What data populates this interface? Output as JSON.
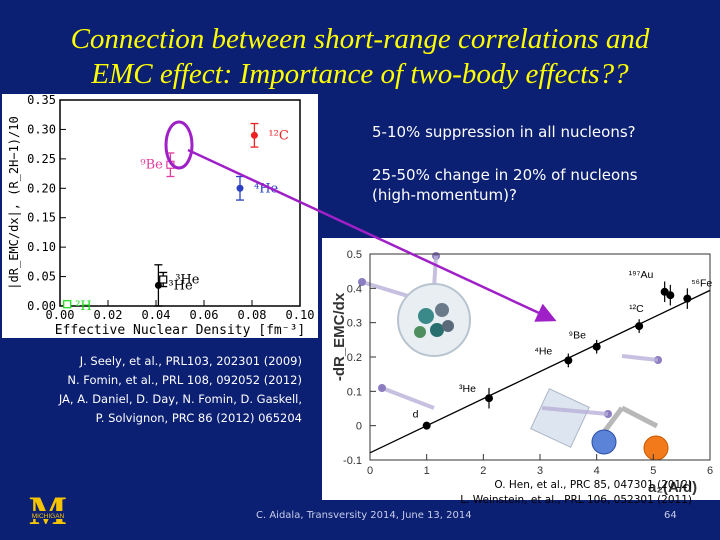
{
  "slide": {
    "title_line1": "Connection between short-range correlations and",
    "title_line2": "EMC effect: Importance of two-body effects??",
    "note1": "5-10% suppression in all nucleons?",
    "note2_line1": "25-50% change in 20% of nucleons",
    "note2_line2": "(high-momentum)?",
    "refs_left": [
      "J. Seely, et al., PRL103, 202301 (2009)",
      "N. Fomin, et al., PRL 108, 092052 (2012)",
      "JA, A. Daniel, D. Day, N. Fomin, D. Gaskell,",
      "P. Solvignon, PRC 86 (2012) 065204"
    ],
    "refs_right": [
      "O. Hen, et al., PRC 85, 047301 (2012)",
      "L. Weinstein, et al., PRL 106, 052301 (2011)"
    ],
    "footer": "C. Aidala, Transversity 2014, June 13, 2014",
    "page_number": "64",
    "logo_letter": "M",
    "logo_text": "MICHIGAN"
  },
  "chart_data": [
    {
      "type": "scatter",
      "title": "",
      "xlabel": "Effective Nuclear Density [fm⁻³]",
      "ylabel": "|dR_EMC/dx|, (R_2H−1)/10",
      "xlim": [
        0,
        0.1
      ],
      "ylim": [
        0,
        0.35
      ],
      "xticks": [
        "0.00",
        "0.02",
        "0.04",
        "0.06",
        "0.08",
        "0.10"
      ],
      "yticks": [
        "0.00",
        "0.05",
        "0.10",
        "0.15",
        "0.20",
        "0.25",
        "0.30",
        "0.35"
      ],
      "series": [
        {
          "label": "²H",
          "color": "#11dd11",
          "x": [
            0.003
          ],
          "y": [
            0.003
          ],
          "err": [
            0.003
          ]
        },
        {
          "label": "³He",
          "color": "#000000",
          "x": [
            0.041
          ],
          "y": [
            0.035
          ],
          "err": [
            0.035
          ]
        },
        {
          "label": "³He",
          "color": "#000000",
          "x": [
            0.043
          ],
          "y": [
            0.045
          ],
          "err": [
            0.012
          ]
        },
        {
          "label": "⁴He",
          "color": "#2a40c0",
          "x": [
            0.075
          ],
          "y": [
            0.2
          ],
          "err": [
            0.02
          ]
        },
        {
          "label": "⁹Be",
          "color": "#e03c9a",
          "x": [
            0.046
          ],
          "y": [
            0.24
          ],
          "err": [
            0.02
          ]
        },
        {
          "label": "¹²C",
          "color": "#ee2020",
          "x": [
            0.081
          ],
          "y": [
            0.29
          ],
          "err": [
            0.02
          ]
        }
      ],
      "annotation": "magenta circle around ⁹Be"
    },
    {
      "type": "scatter",
      "title": "",
      "xlabel": "a₂(A/d)",
      "ylabel": "-dR_EMC/dx",
      "xlim": [
        0,
        6
      ],
      "ylim": [
        -0.1,
        0.5
      ],
      "xticks": [
        "0",
        "1",
        "2",
        "3",
        "4",
        "5",
        "6"
      ],
      "yticks": [
        "-0.1",
        "0",
        "0.1",
        "0.2",
        "0.3",
        "0.4",
        "0.5"
      ],
      "points": [
        {
          "label": "d",
          "x": 1.0,
          "y": 0.0,
          "err": 0.01
        },
        {
          "label": "³He",
          "x": 2.1,
          "y": 0.08,
          "err": 0.03
        },
        {
          "label": "⁴He",
          "x": 3.5,
          "y": 0.19,
          "err": 0.02
        },
        {
          "label": "⁹Be",
          "x": 4.0,
          "y": 0.23,
          "err": 0.02
        },
        {
          "label": "¹²C",
          "x": 4.75,
          "y": 0.29,
          "err": 0.02
        },
        {
          "label": "¹⁹⁷Au",
          "x": 5.2,
          "y": 0.39,
          "err": 0.03
        },
        {
          "label": "¹⁹⁷Au",
          "x": 5.3,
          "y": 0.38,
          "err": 0.03
        },
        {
          "label": "⁵⁶Fe",
          "x": 5.6,
          "y": 0.37,
          "err": 0.03
        }
      ],
      "fit_line": {
        "x": [
          0,
          6
        ],
        "y": [
          -0.079,
          0.394
        ]
      }
    }
  ]
}
